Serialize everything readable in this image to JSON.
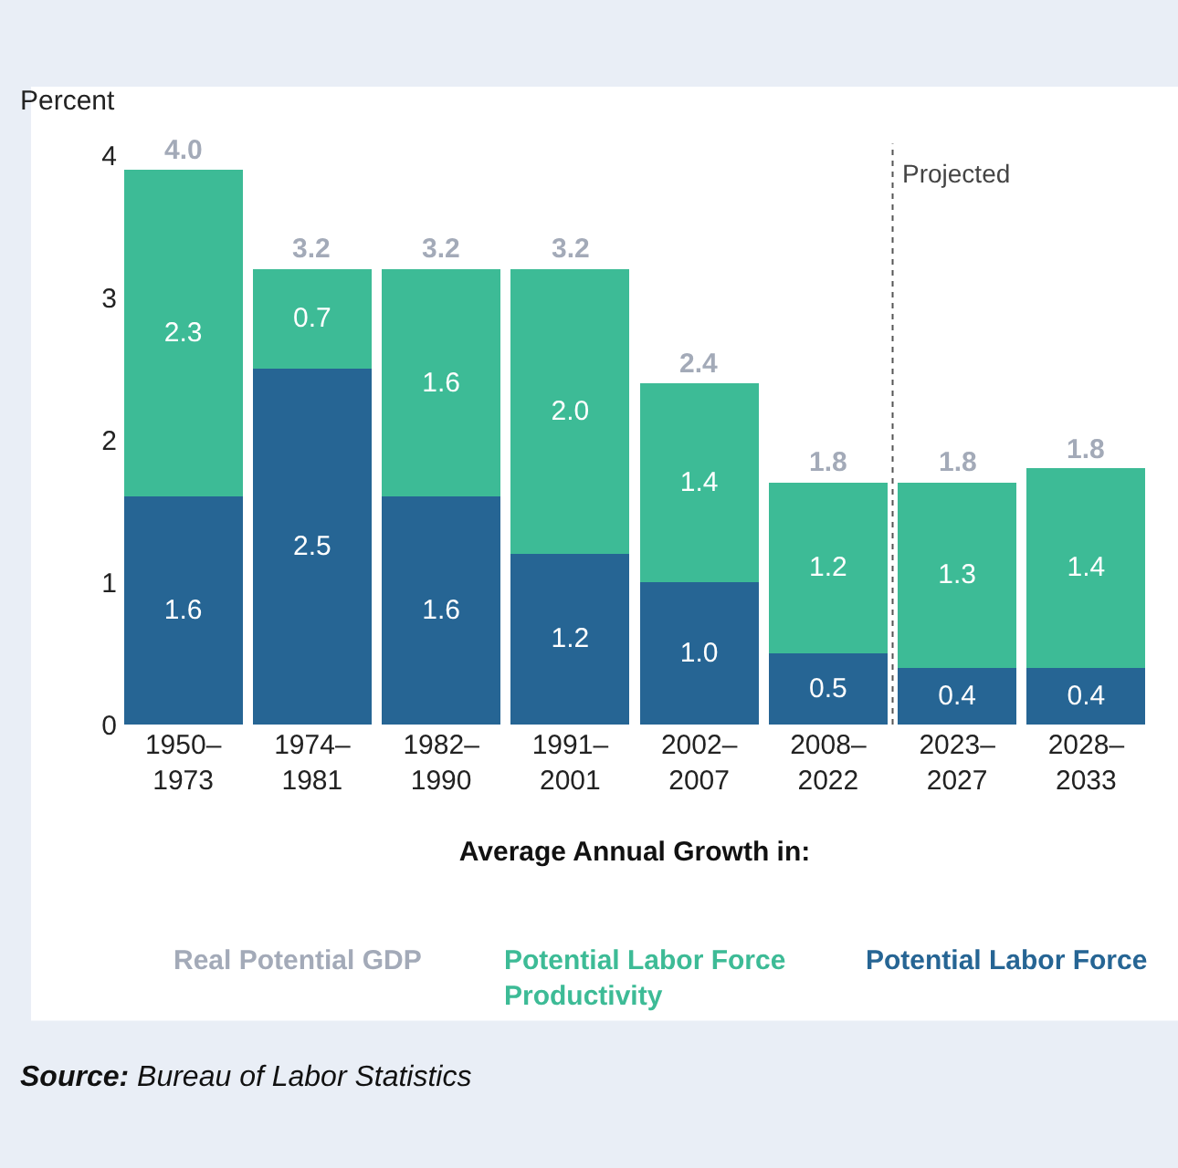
{
  "chart_data": {
    "type": "bar",
    "stacked": true,
    "ylabel": "Percent",
    "xlabel": "Average Annual Growth in:",
    "categories": [
      "1950–\n1973",
      "1974–\n1981",
      "1982–\n1990",
      "1991–\n2001",
      "2002–\n2007",
      "2008–\n2022",
      "2023–\n2027",
      "2028–\n2033"
    ],
    "series": [
      {
        "name": "Potential Labor Force",
        "color": "#266594",
        "values": [
          1.6,
          2.5,
          1.6,
          1.2,
          1.0,
          0.5,
          0.4,
          0.4
        ],
        "value_labels": [
          "1.6",
          "2.5",
          "1.6",
          "1.2",
          "1.0",
          "0.5",
          "0.4",
          "0.4"
        ]
      },
      {
        "name": "Potential Labor Force\nProductivity",
        "color": "#3dbb96",
        "values": [
          2.3,
          0.7,
          1.6,
          2.0,
          1.4,
          1.2,
          1.3,
          1.4
        ],
        "value_labels": [
          "2.3",
          "0.7",
          "1.6",
          "2.0",
          "1.4",
          "1.2",
          "1.3",
          "1.4"
        ]
      }
    ],
    "totals": [
      "4.0",
      "3.2",
      "3.2",
      "3.2",
      "2.4",
      "1.8",
      "1.8",
      "1.8"
    ],
    "ylim": [
      0,
      4
    ],
    "yticks": [
      0,
      1,
      2,
      3,
      4
    ],
    "legend": "bottom",
    "annotations": [
      "Real Potential GDP",
      "Source: Bureau of Labor Statistics",
      "Projected"
    ]
  }
}
